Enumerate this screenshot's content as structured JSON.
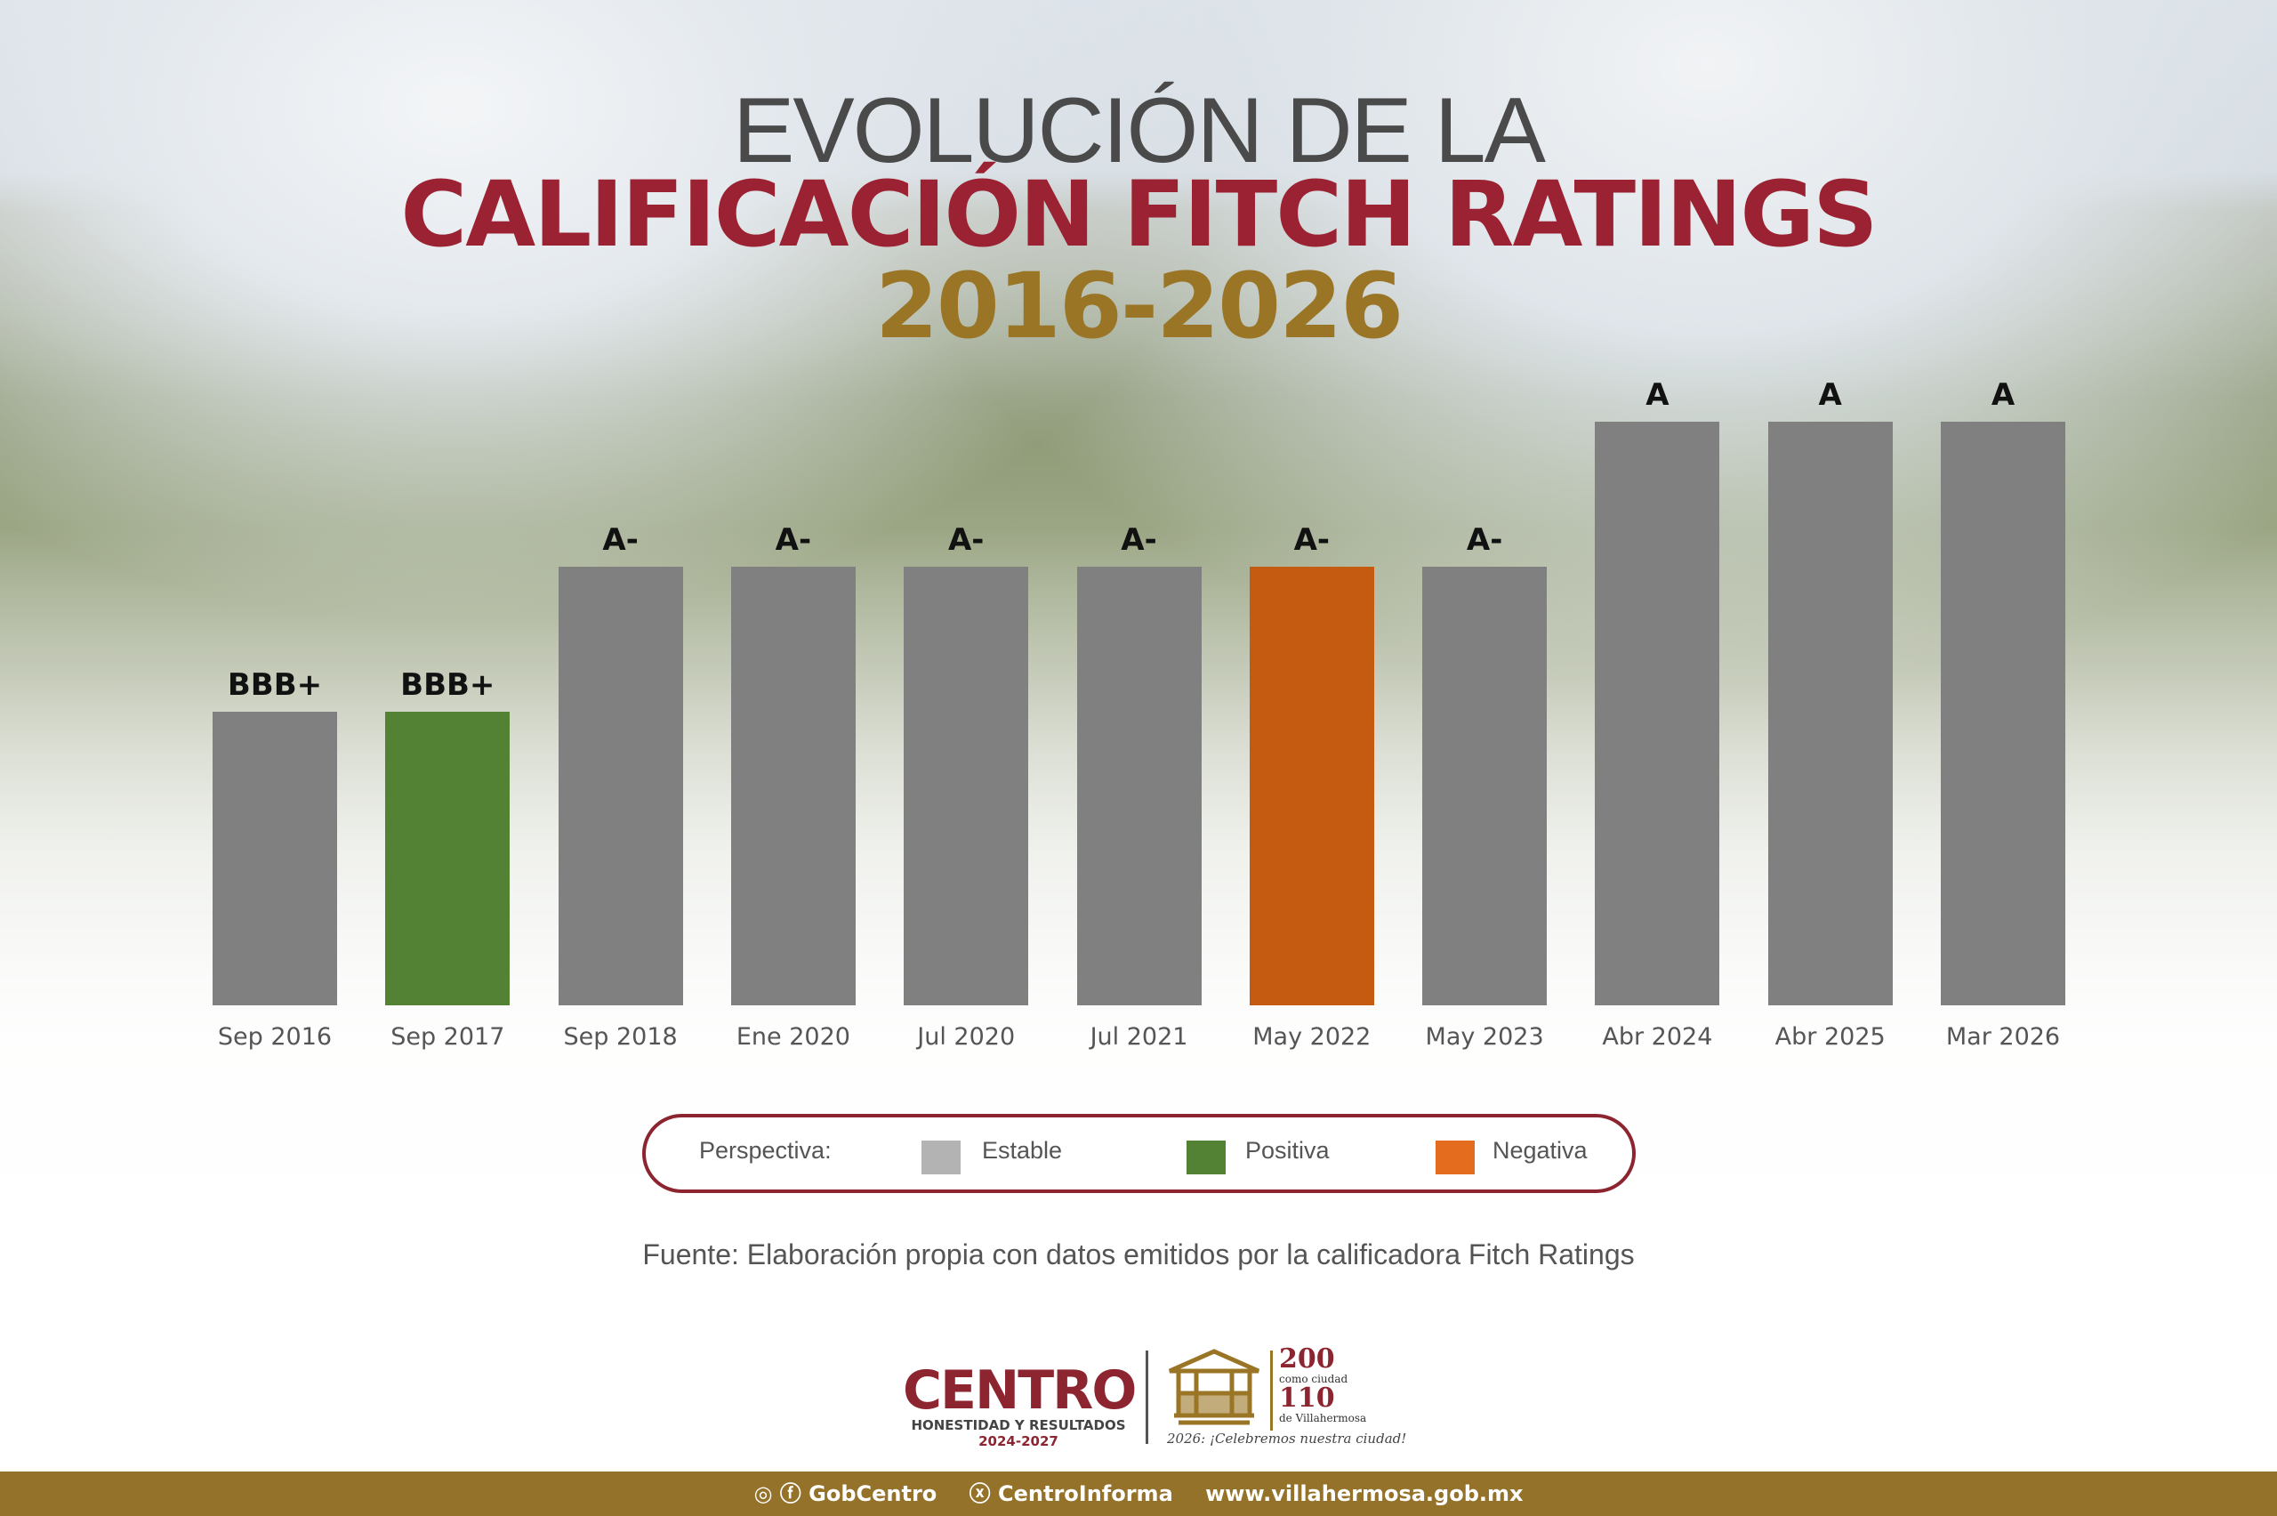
{
  "title": {
    "line1": "EVOLUCIÓN DE LA",
    "line2": "CALIFICACIÓN FITCH RATINGS",
    "line3": "2016-2026"
  },
  "chart_data": {
    "type": "bar",
    "title": "Evolución de la Calificación Fitch Ratings 2016-2026",
    "rating_scale": [
      "BBB+",
      "A-",
      "A"
    ],
    "categories": [
      "Sep 2016",
      "Sep 2017",
      "Sep 2018",
      "Ene 2020",
      "Jul 2020",
      "Jul 2021",
      "May 2022",
      "May 2023",
      "Abr 2024",
      "Abr 2025",
      "Mar 2026"
    ],
    "values": [
      "BBB+",
      "BBB+",
      "A-",
      "A-",
      "A-",
      "A-",
      "A-",
      "A-",
      "A",
      "A",
      "A"
    ],
    "outlook": [
      "Estable",
      "Positiva",
      "Estable",
      "Estable",
      "Estable",
      "Estable",
      "Negativa",
      "Estable",
      "Estable",
      "Estable",
      "Estable"
    ],
    "grid": false,
    "legend": {
      "placement": "bottom",
      "title": "Perspectiva:",
      "items": [
        {
          "label": "Estable",
          "color": "#b3b3b3"
        },
        {
          "label": "Positiva",
          "color": "#548235"
        },
        {
          "label": "Negativa",
          "color": "#e36c1e"
        }
      ]
    },
    "bar_colors": {
      "Estable": "#808080",
      "Positiva": "#548235",
      "Negativa": "#c55a11"
    }
  },
  "source": "Fuente: Elaboración propia con datos emitidos por la calificadora Fitch Ratings",
  "footer": {
    "logo_text": "CENTRO",
    "logo_sub": "HONESTIDAD Y RESULTADOS",
    "logo_years": "2024-2027",
    "anniv_200": "200",
    "anniv_200_sub": "como ciudad",
    "anniv_110": "110",
    "anniv_110_sub": "de Villahermosa",
    "anniv_slogan": "2026: ¡Celebremos nuestra ciudad!",
    "social": [
      "GobCentro",
      "CentroInforma",
      "www.villahermosa.gob.mx"
    ]
  }
}
